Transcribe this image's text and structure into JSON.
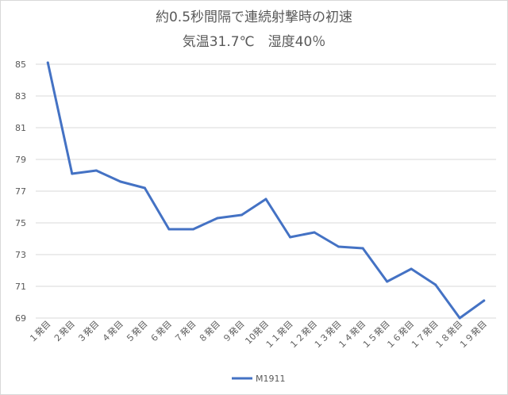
{
  "chart_data": {
    "type": "line",
    "title": "約0.5秒間隔で連続射撃時の初速",
    "subtitle": "気温31.7℃　湿度40％",
    "categories": [
      "１発目",
      "２発目",
      "３発目",
      "４発目",
      "５発目",
      "６発目",
      "７発目",
      "８発目",
      "９発目",
      "10発目",
      "１１発目",
      "１２発目",
      "１３発目",
      "１４発目",
      "１５発目",
      "１６発目",
      "１７発目",
      "１８発目",
      "１９発目"
    ],
    "series": [
      {
        "name": "M1911",
        "values": [
          85.1,
          78.1,
          78.3,
          77.6,
          77.2,
          74.6,
          74.6,
          75.3,
          75.5,
          76.5,
          74.1,
          74.4,
          73.5,
          73.4,
          71.3,
          72.1,
          71.1,
          69.0,
          70.1
        ]
      }
    ],
    "ylim": [
      69,
      85
    ],
    "yticks": [
      69,
      71,
      73,
      75,
      77,
      79,
      81,
      83,
      85
    ],
    "grid": true,
    "legend": "bottom",
    "line_color": "#4472c4",
    "grid_color": "#d9d9d9"
  }
}
